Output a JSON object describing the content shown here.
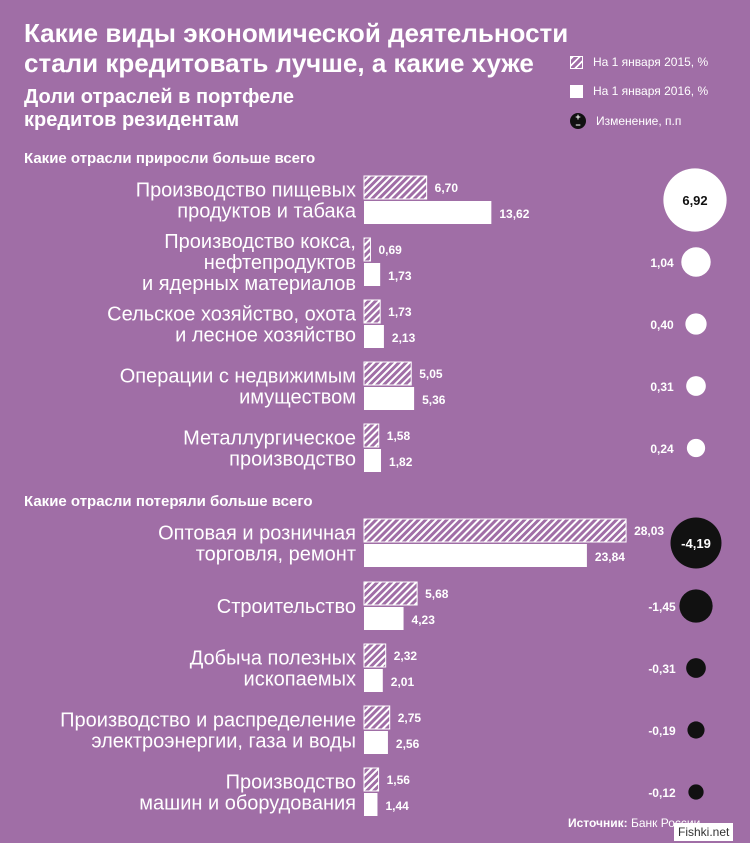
{
  "title": "Какие виды экономической деятельности стали кредитовать лучше, а какие хуже",
  "subtitle": "Доли отраслей в портфеле кредитов резидентам",
  "legend": {
    "y2015": "На 1 января 2015, %",
    "y2016": "На 1 января 2016, %",
    "change": "Изменение, п.п",
    "change_icon": "plus-minus-icon"
  },
  "sections": {
    "grew": "Какие отрасли приросли больше всего",
    "lost": "Какие отрасли потеряли больше всего"
  },
  "source_label": "Источник:",
  "source_value": "Банк России",
  "watermark": "Fishki.net",
  "colors": {
    "background": "#a06ea6",
    "bar": "#ffffff",
    "positive": "#ffffff",
    "negative": "#111111"
  },
  "chart_data": {
    "type": "bar",
    "series": [
      {
        "name": "На 1 января 2015, %",
        "pattern": "hatched"
      },
      {
        "name": "На 1 января 2016, %",
        "pattern": "solid"
      }
    ],
    "groups": [
      {
        "section": "Какие отрасли приросли больше всего",
        "items": [
          {
            "label": [
              "Производство пищевых",
              "продуктов и табака"
            ],
            "v2015": 6.7,
            "v2015_label": "6,70",
            "v2016": 13.62,
            "v2016_label": "13,62",
            "change": 6.92,
            "change_label": "6,92"
          },
          {
            "label": [
              "Производство кокса,",
              "нефтепродуктов",
              "и ядерных материалов"
            ],
            "v2015": 0.69,
            "v2015_label": "0,69",
            "v2016": 1.73,
            "v2016_label": "1,73",
            "change": 1.04,
            "change_label": "1,04"
          },
          {
            "label": [
              "Сельское хозяйство, охота",
              "и лесное хозяйство"
            ],
            "v2015": 1.73,
            "v2015_label": "1,73",
            "v2016": 2.13,
            "v2016_label": "2,13",
            "change": 0.4,
            "change_label": "0,40"
          },
          {
            "label": [
              "Операции с недвижимым",
              "имуществом"
            ],
            "v2015": 5.05,
            "v2015_label": "5,05",
            "v2016": 5.36,
            "v2016_label": "5,36",
            "change": 0.31,
            "change_label": "0,31"
          },
          {
            "label": [
              "Металлургическое",
              "производство"
            ],
            "v2015": 1.58,
            "v2015_label": "1,58",
            "v2016": 1.82,
            "v2016_label": "1,82",
            "change": 0.24,
            "change_label": "0,24"
          }
        ]
      },
      {
        "section": "Какие отрасли потеряли больше всего",
        "items": [
          {
            "label": [
              "Оптовая и розничная",
              "торговля, ремонт"
            ],
            "v2015": 28.03,
            "v2015_label": "28,03",
            "v2016": 23.84,
            "v2016_label": "23,84",
            "change": -4.19,
            "change_label": "-4,19"
          },
          {
            "label": [
              "Строительство"
            ],
            "v2015": 5.68,
            "v2015_label": "5,68",
            "v2016": 4.23,
            "v2016_label": "4,23",
            "change": -1.45,
            "change_label": "-1,45"
          },
          {
            "label": [
              "Добыча полезных",
              "ископаемых"
            ],
            "v2015": 2.32,
            "v2015_label": "2,32",
            "v2016": 2.01,
            "v2016_label": "2,01",
            "change": -0.31,
            "change_label": "-0,31"
          },
          {
            "label": [
              "Производство и распределение",
              "электроэнергии, газа и воды"
            ],
            "v2015": 2.75,
            "v2015_label": "2,75",
            "v2016": 2.56,
            "v2016_label": "2,56",
            "change": -0.19,
            "change_label": "-0,19"
          },
          {
            "label": [
              "Производство",
              "машин и оборудования"
            ],
            "v2015": 1.56,
            "v2015_label": "1,56",
            "v2016": 1.44,
            "v2016_label": "1,44",
            "change": -0.12,
            "change_label": "-0,12"
          }
        ]
      }
    ]
  }
}
